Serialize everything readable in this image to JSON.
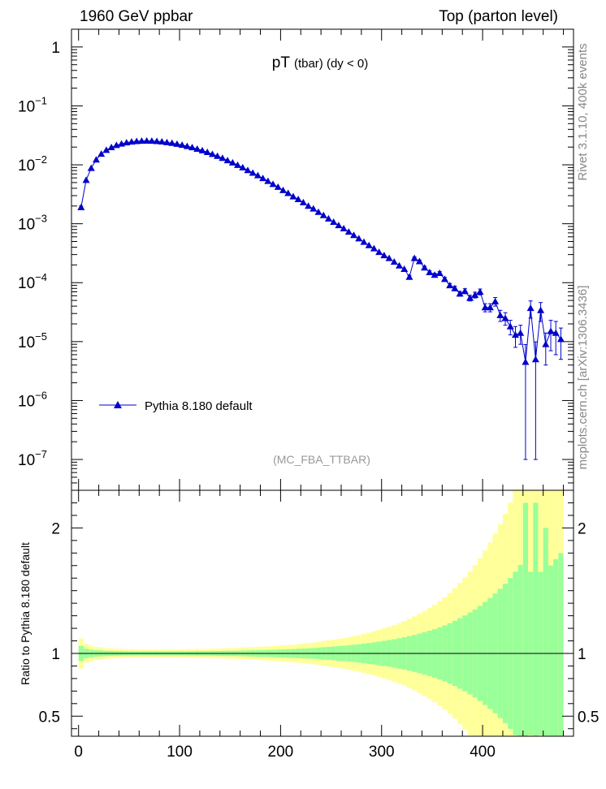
{
  "header": {
    "left": "1960 GeV ppbar",
    "right": "Top (parton level)"
  },
  "side_labels": {
    "rivet": "Rivet 3.1.10,  400k events",
    "mcplots": "mcplots.cern.ch [arXiv:1306.3436]"
  },
  "colors": {
    "series": "#0000cc",
    "band_inner": "#99ff99",
    "band_outer": "#ffff99",
    "watermark": "#999999"
  },
  "chart_data": [
    {
      "type": "line",
      "role": "main",
      "title_main": "pT",
      "title_sub": "(tbar) (dy < 0)",
      "watermark": "(MC_FBA_TTBAR)",
      "yscale": "log",
      "xlim": [
        -7,
        490
      ],
      "ylim": [
        3e-08,
        2
      ],
      "y_ticks": [
        {
          "value": 1,
          "label": "1",
          "sup": ""
        },
        {
          "value": 0.1,
          "label": "10",
          "sup": "−1"
        },
        {
          "value": 0.01,
          "label": "10",
          "sup": "−2"
        },
        {
          "value": 0.001,
          "label": "10",
          "sup": "−3"
        },
        {
          "value": 0.0001,
          "label": "10",
          "sup": "−4"
        },
        {
          "value": 1e-05,
          "label": "10",
          "sup": "−5"
        },
        {
          "value": 1e-06,
          "label": "10",
          "sup": "−6"
        },
        {
          "value": 1e-07,
          "label": "10",
          "sup": "−7"
        }
      ],
      "legend": {
        "label": "Pythia 8.180 default",
        "position": "lower-left"
      },
      "series": [
        {
          "name": "Pythia 8.180 default",
          "x": [
            2.5,
            7.5,
            12.5,
            17.5,
            22.5,
            27.5,
            32.5,
            37.5,
            42.5,
            47.5,
            52.5,
            57.5,
            62.5,
            67.5,
            72.5,
            77.5,
            82.5,
            87.5,
            92.5,
            97.5,
            102.5,
            107.5,
            112.5,
            117.5,
            122.5,
            127.5,
            132.5,
            137.5,
            142.5,
            147.5,
            152.5,
            157.5,
            162.5,
            167.5,
            172.5,
            177.5,
            182.5,
            187.5,
            192.5,
            197.5,
            202.5,
            207.5,
            212.5,
            217.5,
            222.5,
            227.5,
            232.5,
            237.5,
            242.5,
            247.5,
            252.5,
            257.5,
            262.5,
            267.5,
            272.5,
            277.5,
            282.5,
            287.5,
            292.5,
            297.5,
            302.5,
            307.5,
            312.5,
            317.5,
            322.5,
            327.5,
            332.5,
            337.5,
            342.5,
            347.5,
            352.5,
            357.5,
            362.5,
            367.5,
            372.5,
            377.5,
            382.5,
            387.5,
            392.5,
            397.5,
            402.5,
            407.5,
            412.5,
            417.5,
            422.5,
            427.5,
            432.5,
            437.5,
            442.5,
            447.5,
            452.5,
            457.5,
            462.5,
            467.5,
            472.5,
            477.5
          ],
          "y": [
            0.0019,
            0.0055,
            0.0088,
            0.0122,
            0.0153,
            0.0178,
            0.0198,
            0.0215,
            0.0228,
            0.0239,
            0.0246,
            0.0251,
            0.0254,
            0.0255,
            0.0254,
            0.0251,
            0.0247,
            0.0241,
            0.0234,
            0.0226,
            0.0217,
            0.0207,
            0.0197,
            0.0186,
            0.0175,
            0.0164,
            0.0152,
            0.0141,
            0.013,
            0.0119,
            0.0109,
            0.0099,
            0.009,
            0.0081,
            0.0073,
            0.0066,
            0.0059,
            0.0053,
            0.0047,
            0.0042,
            0.0037,
            0.0033,
            0.0029,
            0.0026,
            0.0023,
            0.002,
            0.0018,
            0.00158,
            0.00139,
            0.00122,
            0.00107,
            0.00094,
            0.00083,
            0.00073,
            0.00064,
            0.00056,
            0.00049,
            0.00043,
            0.00038,
            0.00033,
            0.00029,
            0.00026,
            0.000225,
            0.000195,
            0.00017,
            0.000125,
            0.00026,
            0.00023,
            0.00018,
            0.00015,
            0.000135,
            0.000145,
            0.000115,
            9e-05,
            8e-05,
            6.5e-05,
            7.2e-05,
            5.5e-05,
            6.2e-05,
            7e-05,
            3.8e-05,
            3.8e-05,
            4.8e-05,
            2.8e-05,
            2.5e-05,
            1.8e-05,
            1.3e-05,
            1.4e-05,
            4.5e-06,
            3.7e-05,
            5e-06,
            3.4e-05,
            9e-06,
            1.5e-05,
            1.4e-05,
            1.1e-05
          ],
          "yerr": [
            0.0001,
            0.0002,
            0.0003,
            0.0003,
            0.0004,
            0.0004,
            0.0004,
            0.0004,
            0.0004,
            0.0004,
            0.0004,
            0.0004,
            0.0004,
            0.0004,
            0.0004,
            0.0004,
            0.0004,
            0.0004,
            0.0004,
            0.0004,
            0.0003,
            0.0003,
            0.0003,
            0.0003,
            0.0003,
            0.0003,
            0.0003,
            0.0002,
            0.0002,
            0.0002,
            0.0002,
            0.0002,
            0.0002,
            0.0002,
            0.0002,
            0.0001,
            0.0001,
            0.0001,
            0.0001,
            0.0001,
            0.0001,
            0.0001,
            0.0001,
            8e-05,
            7e-05,
            6e-05,
            5e-05,
            5e-05,
            4e-05,
            4e-05,
            3e-05,
            3e-05,
            3e-05,
            2e-05,
            2e-05,
            2e-05,
            2e-05,
            2e-05,
            1e-05,
            1e-05,
            1e-05,
            1e-05,
            1e-05,
            9e-06,
            8e-06,
            8e-06,
            1.3e-05,
            1.2e-05,
            1e-05,
            9e-06,
            9e-06,
            9e-06,
            8e-06,
            7e-06,
            7e-06,
            6e-06,
            7e-06,
            6e-06,
            7e-06,
            8e-06,
            6e-06,
            6e-06,
            8e-06,
            6e-06,
            6e-06,
            5e-06,
            5e-06,
            5e-06,
            4.4e-06,
            1.2e-05,
            4.9e-06,
            1.2e-05,
            5e-06,
            8e-06,
            8e-06,
            6e-06
          ]
        }
      ]
    },
    {
      "type": "area",
      "role": "ratio",
      "ylabel": "Ratio to Pythia 8.180 default",
      "xlim": [
        -7,
        490
      ],
      "ylim": [
        0.34,
        2.3
      ],
      "y_ticks": [
        0.5,
        1,
        2
      ],
      "y_tick_labels": [
        "0.5",
        "1",
        "2"
      ],
      "x_ticks": [
        0,
        100,
        200,
        300,
        400
      ],
      "x_tick_labels": [
        "0",
        "100",
        "200",
        "300",
        "400"
      ],
      "reference_line": 1,
      "bin_edges": [
        0,
        5,
        10,
        15,
        20,
        25,
        30,
        35,
        40,
        45,
        50,
        55,
        60,
        65,
        70,
        75,
        80,
        85,
        90,
        95,
        100,
        105,
        110,
        115,
        120,
        125,
        130,
        135,
        140,
        145,
        150,
        155,
        160,
        165,
        170,
        175,
        180,
        185,
        190,
        195,
        200,
        205,
        210,
        215,
        220,
        225,
        230,
        235,
        240,
        245,
        250,
        255,
        260,
        265,
        270,
        275,
        280,
        285,
        290,
        295,
        300,
        305,
        310,
        315,
        320,
        325,
        330,
        335,
        340,
        345,
        350,
        355,
        360,
        365,
        370,
        375,
        380,
        385,
        390,
        395,
        400,
        405,
        410,
        415,
        420,
        425,
        430,
        435,
        440,
        445,
        450,
        455,
        460,
        465,
        470,
        475,
        480
      ],
      "inner_band": [
        0.06,
        0.037,
        0.03,
        0.026,
        0.024,
        0.021,
        0.02,
        0.019,
        0.018,
        0.017,
        0.017,
        0.016,
        0.016,
        0.016,
        0.016,
        0.016,
        0.016,
        0.016,
        0.016,
        0.016,
        0.017,
        0.017,
        0.017,
        0.018,
        0.018,
        0.018,
        0.019,
        0.019,
        0.02,
        0.021,
        0.021,
        0.022,
        0.023,
        0.024,
        0.025,
        0.026,
        0.027,
        0.028,
        0.029,
        0.031,
        0.032,
        0.034,
        0.035,
        0.037,
        0.039,
        0.041,
        0.043,
        0.046,
        0.049,
        0.052,
        0.055,
        0.058,
        0.061,
        0.065,
        0.069,
        0.073,
        0.078,
        0.083,
        0.088,
        0.094,
        0.1,
        0.106,
        0.113,
        0.121,
        0.129,
        0.138,
        0.147,
        0.158,
        0.169,
        0.181,
        0.194,
        0.208,
        0.223,
        0.24,
        0.26,
        0.281,
        0.303,
        0.326,
        0.351,
        0.379,
        0.41,
        0.442,
        0.477,
        0.515,
        0.556,
        0.601,
        0.651,
        0.705,
        1.2,
        0.65,
        1.2,
        0.65,
        1.0,
        0.7,
        0.75,
        0.8
      ],
      "outer_band": [
        0.12,
        0.074,
        0.06,
        0.052,
        0.048,
        0.042,
        0.04,
        0.038,
        0.036,
        0.034,
        0.034,
        0.032,
        0.032,
        0.032,
        0.032,
        0.032,
        0.032,
        0.032,
        0.032,
        0.032,
        0.034,
        0.034,
        0.034,
        0.036,
        0.036,
        0.036,
        0.038,
        0.038,
        0.04,
        0.042,
        0.042,
        0.044,
        0.046,
        0.048,
        0.05,
        0.052,
        0.054,
        0.056,
        0.058,
        0.062,
        0.064,
        0.068,
        0.07,
        0.074,
        0.078,
        0.082,
        0.086,
        0.092,
        0.098,
        0.104,
        0.11,
        0.116,
        0.122,
        0.13,
        0.138,
        0.146,
        0.156,
        0.166,
        0.176,
        0.188,
        0.2,
        0.212,
        0.226,
        0.242,
        0.258,
        0.276,
        0.294,
        0.316,
        0.338,
        0.362,
        0.388,
        0.416,
        0.446,
        0.48,
        0.52,
        0.562,
        0.606,
        0.652,
        0.702,
        0.758,
        0.82,
        0.884,
        0.954,
        1.03,
        1.112,
        1.202,
        1.302,
        1.41,
        2.4,
        1.3,
        2.4,
        1.3,
        2.0,
        1.4,
        1.5,
        1.6
      ]
    }
  ]
}
